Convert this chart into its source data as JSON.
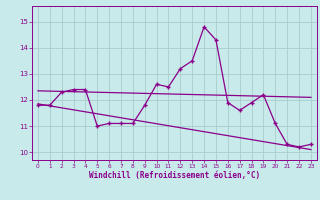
{
  "x": [
    0,
    1,
    2,
    3,
    4,
    5,
    6,
    7,
    8,
    9,
    10,
    11,
    12,
    13,
    14,
    15,
    16,
    17,
    18,
    19,
    20,
    21,
    22,
    23
  ],
  "line1": [
    11.8,
    11.8,
    12.3,
    12.4,
    12.4,
    11.0,
    11.1,
    11.1,
    11.1,
    11.8,
    12.6,
    12.5,
    13.2,
    13.5,
    14.8,
    14.3,
    11.9,
    11.6,
    11.9,
    12.2,
    11.1,
    10.3,
    10.2,
    10.3
  ],
  "line2_x": [
    0,
    23
  ],
  "line2_y": [
    12.35,
    12.1
  ],
  "line3_x": [
    0,
    23
  ],
  "line3_y": [
    11.85,
    10.1
  ],
  "line_color": "#8b008b",
  "bg_color": "#c8eaea",
  "grid_color": "#a8cccc",
  "xlabel": "Windchill (Refroidissement éolien,°C)",
  "xlim": [
    -0.5,
    23.5
  ],
  "ylim": [
    9.7,
    15.6
  ],
  "yticks": [
    10,
    11,
    12,
    13,
    14,
    15
  ],
  "xticks": [
    0,
    1,
    2,
    3,
    4,
    5,
    6,
    7,
    8,
    9,
    10,
    11,
    12,
    13,
    14,
    15,
    16,
    17,
    18,
    19,
    20,
    21,
    22,
    23
  ],
  "marker": "+"
}
